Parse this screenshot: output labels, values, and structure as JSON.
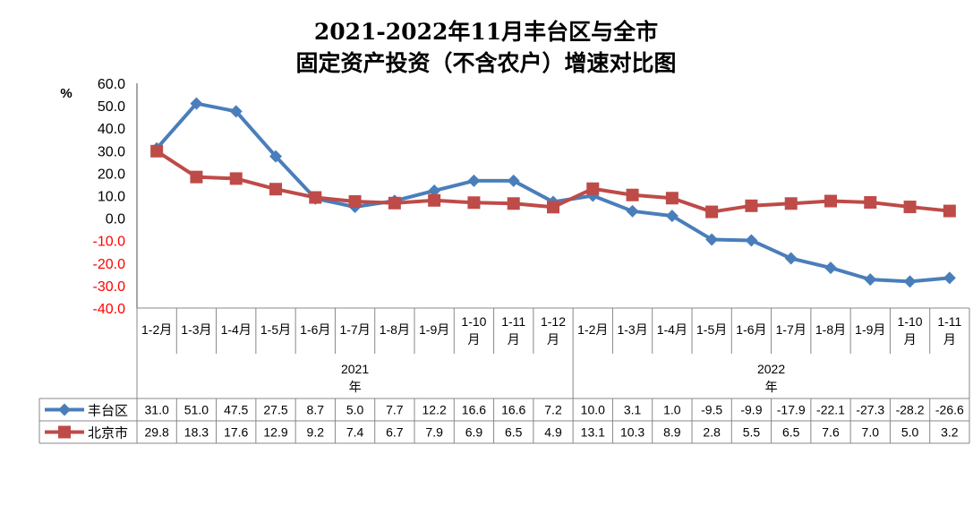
{
  "chart_data": {
    "type": "line",
    "title": [
      "2021-2022年11月丰台区与全市",
      "固定资产投资（不含农户）增速对比图"
    ],
    "ylabel": "%",
    "ylim": [
      -40,
      60
    ],
    "yticks": [
      "60.0",
      "50.0",
      "40.0",
      "30.0",
      "20.0",
      "10.0",
      "0.0",
      "-10.0",
      "-20.0",
      "-30.0",
      "-40.0"
    ],
    "categories": [
      "1-2月",
      "1-3月",
      "1-4月",
      "1-5月",
      "1-6月",
      "1-7月",
      "1-8月",
      "1-9月",
      "1-10月",
      "1-11月",
      "1-12月",
      "1-2月",
      "1-3月",
      "1-4月",
      "1-5月",
      "1-6月",
      "1-7月",
      "1-8月",
      "1-9月",
      "1-10月",
      "1-11月"
    ],
    "years": [
      {
        "label": "2021年",
        "count": 11
      },
      {
        "label": "2022年",
        "count": 10
      }
    ],
    "series": [
      {
        "name": "丰台区",
        "color": "#4a7ebb",
        "marker": "diamond",
        "values": [
          31.0,
          51.0,
          47.5,
          27.5,
          8.7,
          5.0,
          7.7,
          12.2,
          16.6,
          16.6,
          7.2,
          10.0,
          3.1,
          1.0,
          -9.5,
          -9.9,
          -17.9,
          -22.1,
          -27.3,
          -28.2,
          -26.6
        ]
      },
      {
        "name": "北京市",
        "color": "#be4b48",
        "marker": "square",
        "values": [
          29.8,
          18.3,
          17.6,
          12.9,
          9.2,
          7.4,
          6.7,
          7.9,
          6.9,
          6.5,
          4.9,
          13.1,
          10.3,
          8.9,
          2.8,
          5.5,
          6.5,
          7.6,
          7.0,
          5.0,
          3.2
        ]
      }
    ]
  }
}
